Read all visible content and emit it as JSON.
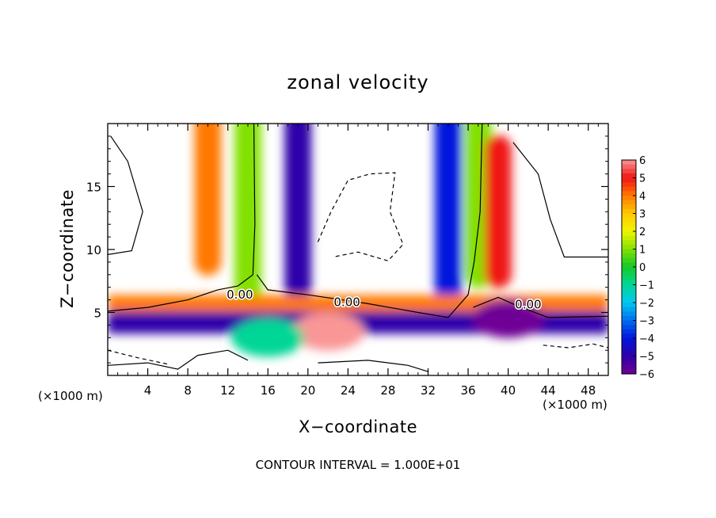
{
  "chart_data": {
    "type": "heatmap",
    "title": "zonal velocity",
    "xlabel": "X−coordinate",
    "ylabel": "Z−coordinate",
    "x_unit_label": "(×1000 m)",
    "xlim": [
      0,
      50
    ],
    "ylim": [
      0,
      20
    ],
    "x_ticks": [
      4,
      8,
      12,
      16,
      20,
      24,
      28,
      32,
      36,
      40,
      44,
      48
    ],
    "x_tick_labels": [
      "4",
      "8",
      "12",
      "16",
      "20",
      "24",
      "28",
      "32",
      "36",
      "40",
      "44",
      "48"
    ],
    "y_ticks": [
      5,
      10,
      15
    ],
    "y_tick_labels": [
      "5",
      "10",
      "15"
    ],
    "colorbar": {
      "min": -6,
      "max": 6,
      "ticks": [
        6,
        5,
        4,
        3,
        2,
        1,
        0,
        -1,
        -2,
        -3,
        -4,
        -5,
        -6
      ],
      "tick_labels": [
        "6",
        "5",
        "4",
        "3",
        "2",
        "1",
        "0",
        "−1",
        "−2",
        "−3",
        "−4",
        "−5",
        "−6"
      ]
    },
    "contour_label": "0.00",
    "footnote": "CONTOUR INTERVAL = 1.000E+01",
    "field_features": [
      {
        "kind": "jet",
        "x0": 14,
        "z0": 20,
        "x1": 14,
        "z1": 6,
        "value": 1
      },
      {
        "kind": "jet",
        "x0": 19,
        "z0": 20,
        "x1": 19,
        "z1": 7,
        "value": -5
      },
      {
        "kind": "jet",
        "x0": 10,
        "z0": 20,
        "x1": 10,
        "z1": 9,
        "value": 4
      },
      {
        "kind": "jet",
        "x0": 34,
        "z0": 20,
        "x1": 34,
        "z1": 6,
        "value": -4
      },
      {
        "kind": "jet",
        "x0": 37,
        "z0": 20,
        "x1": 37,
        "z1": 8,
        "value": 1
      },
      {
        "kind": "jet",
        "x0": 39,
        "z0": 18,
        "x1": 39,
        "z1": 8,
        "value": 5
      },
      {
        "kind": "layer",
        "z": 5.5,
        "x0": 0,
        "x1": 50,
        "value": 4
      },
      {
        "kind": "layer",
        "z": 4.2,
        "x0": 0,
        "x1": 50,
        "value": -5
      },
      {
        "kind": "blob",
        "x": 22,
        "z": 3.5,
        "value": 6
      },
      {
        "kind": "blob",
        "x": 16,
        "z": 3,
        "value": -1
      },
      {
        "kind": "blob",
        "x": 40,
        "z": 4.5,
        "value": -6
      }
    ]
  }
}
